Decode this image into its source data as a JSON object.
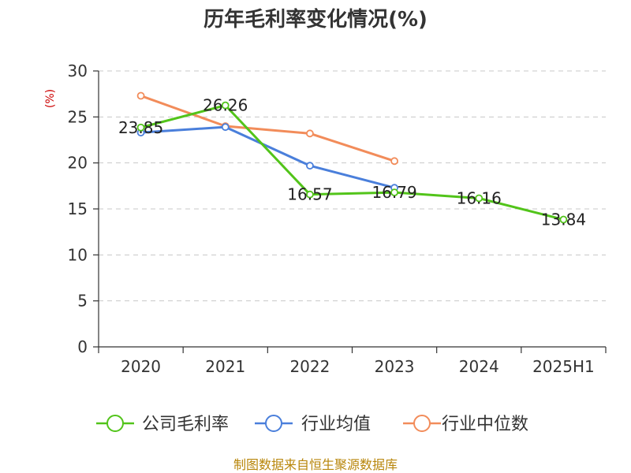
{
  "chart_data": {
    "type": "line",
    "title": "历年毛利率变化情况(%)",
    "ylabel": "(%)",
    "xlabel": "",
    "categories": [
      "2020",
      "2021",
      "2022",
      "2023",
      "2024",
      "2025H1"
    ],
    "ylim": [
      0,
      30
    ],
    "yticks": [
      "0",
      "5",
      "10",
      "15",
      "20",
      "25",
      "30"
    ],
    "grid": true,
    "legend_position": "bottom",
    "series": [
      {
        "name": "公司毛利率",
        "color": "#52c41a",
        "values": [
          23.85,
          26.26,
          16.57,
          16.79,
          16.16,
          13.84
        ],
        "labels": [
          "23.85",
          "26.26",
          "16.57",
          "16.79",
          "16.16",
          "13.84"
        ]
      },
      {
        "name": "行业均值",
        "color": "#4a7fdb",
        "values": [
          23.3,
          23.9,
          19.7,
          17.3,
          null,
          null
        ]
      },
      {
        "name": "行业中位数",
        "color": "#f28c5a",
        "values": [
          27.3,
          24.0,
          23.2,
          20.2,
          null,
          null
        ]
      }
    ]
  },
  "source_text": "制图数据来自恒生聚源数据库"
}
